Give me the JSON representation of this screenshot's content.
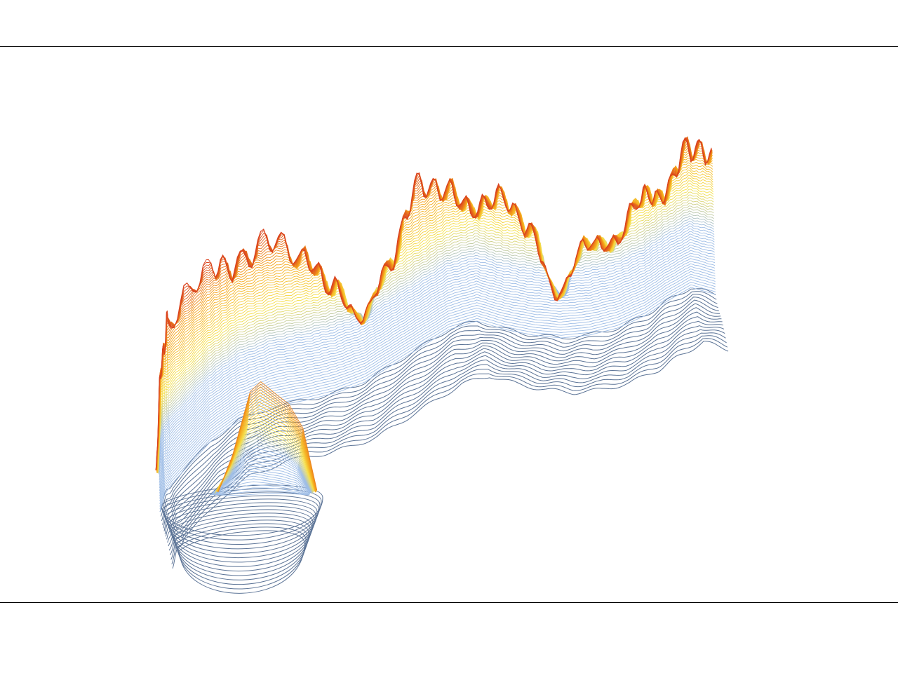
{
  "figure": {
    "kind": "3d-contour-terrain",
    "caption": "",
    "colors": {
      "base_contour": "#5b7396",
      "low": "#9ebde6",
      "mid": "#f5e04a",
      "high_mid": "#f5a31a",
      "peak": "#d9401e",
      "rules": "#000000",
      "background": "#ffffff"
    }
  }
}
